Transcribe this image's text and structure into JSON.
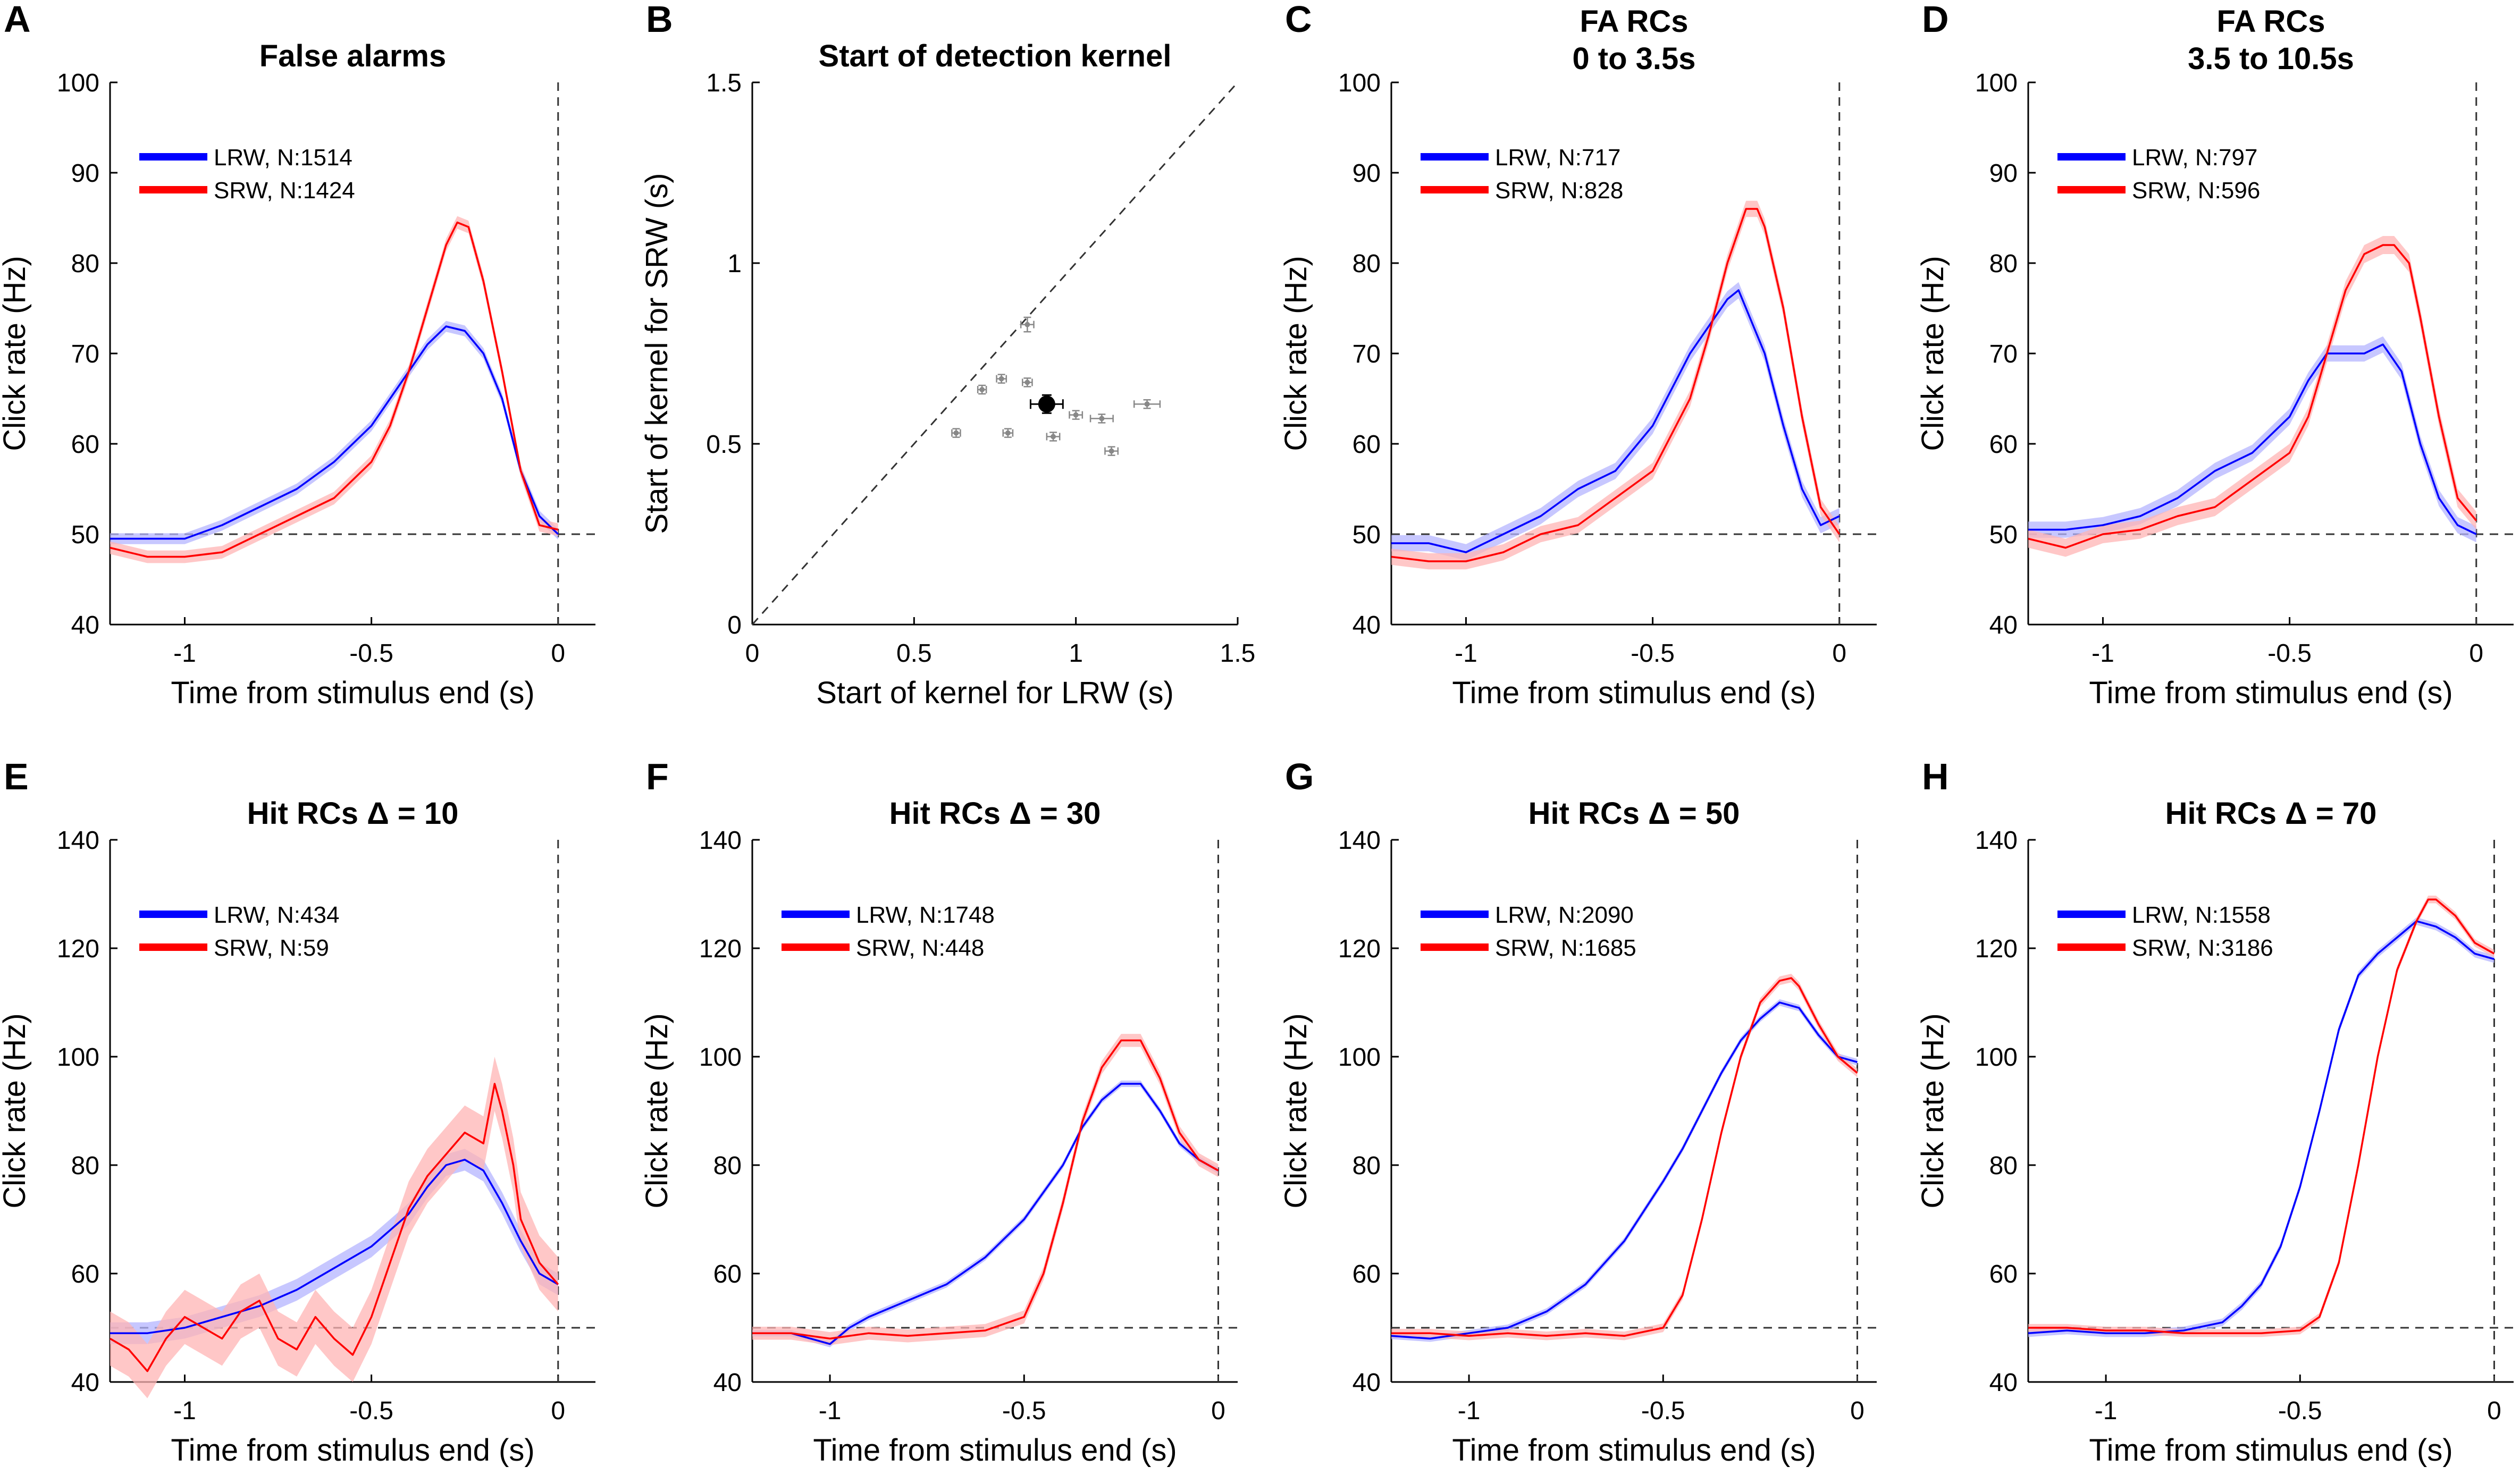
{
  "figure": {
    "colors": {
      "lrw": "#0000ff",
      "srw": "#ff0000",
      "lrw_band": "#b4b4ff",
      "srw_band": "#ffb4b4",
      "scatter_points": "#888888",
      "mean_point": "#000000",
      "axis": "#000000",
      "reference": "#333333"
    }
  },
  "chart_data": [
    {
      "panel": "A",
      "type": "line",
      "title": [
        "False alarms"
      ],
      "xlabel": "Time from stimulus end (s)",
      "ylabel": "Click rate (Hz)",
      "xlim": [
        -1.2,
        0.1
      ],
      "ylim": [
        40,
        100
      ],
      "xticks": [
        -1,
        -0.5,
        0
      ],
      "xtick_labels": [
        "-1",
        "-0.5",
        "0"
      ],
      "yticks": [
        40,
        50,
        60,
        70,
        80,
        90,
        100
      ],
      "ytick_labels": [
        "40",
        "50",
        "60",
        "70",
        "80",
        "90",
        "100"
      ],
      "hline": 50,
      "vline": 0,
      "series": [
        {
          "name": "LRW",
          "legend": "LRW, N:1514",
          "color": "#0000ff",
          "band": 0.6,
          "x": [
            -1.2,
            -1.1,
            -1.0,
            -0.9,
            -0.8,
            -0.7,
            -0.6,
            -0.5,
            -0.45,
            -0.4,
            -0.35,
            -0.3,
            -0.25,
            -0.2,
            -0.15,
            -0.1,
            -0.05,
            0
          ],
          "y": [
            49.5,
            49.5,
            49.5,
            51,
            53,
            55,
            58,
            62,
            65,
            68,
            71,
            73,
            72.5,
            70,
            65,
            57,
            52,
            50
          ]
        },
        {
          "name": "SRW",
          "legend": "SRW, N:1424",
          "color": "#ff0000",
          "band": 0.7,
          "x": [
            -1.2,
            -1.1,
            -1.0,
            -0.9,
            -0.8,
            -0.7,
            -0.6,
            -0.5,
            -0.45,
            -0.4,
            -0.35,
            -0.3,
            -0.27,
            -0.24,
            -0.2,
            -0.15,
            -0.1,
            -0.05,
            0
          ],
          "y": [
            48.5,
            47.5,
            47.5,
            48,
            50,
            52,
            54,
            58,
            62,
            68,
            75,
            82,
            84.5,
            84,
            78,
            68,
            57,
            51,
            50.5
          ]
        }
      ]
    },
    {
      "panel": "B",
      "type": "scatter",
      "title": [
        "Start of detection kernel"
      ],
      "xlabel": "Start of kernel for LRW (s)",
      "ylabel": "Start of kernel for SRW (s)",
      "xlim": [
        0,
        1.5
      ],
      "ylim": [
        0,
        1.5
      ],
      "xticks": [
        0,
        0.5,
        1,
        1.5
      ],
      "xtick_labels": [
        "0",
        "0.5",
        "1",
        "1.5"
      ],
      "yticks": [
        0,
        0.5,
        1,
        1.5
      ],
      "ytick_labels": [
        "0",
        "0.5",
        "1",
        "1.5"
      ],
      "diagonal": true,
      "points": [
        {
          "x": 0.63,
          "y": 0.53,
          "xerr": 0.01,
          "yerr": 0.01
        },
        {
          "x": 0.71,
          "y": 0.65,
          "xerr": 0.01,
          "yerr": 0.01
        },
        {
          "x": 0.77,
          "y": 0.68,
          "xerr": 0.015,
          "yerr": 0.01
        },
        {
          "x": 0.79,
          "y": 0.53,
          "xerr": 0.015,
          "yerr": 0.01
        },
        {
          "x": 0.85,
          "y": 0.83,
          "xerr": 0.02,
          "yerr": 0.02
        },
        {
          "x": 0.85,
          "y": 0.67,
          "xerr": 0.015,
          "yerr": 0.01
        },
        {
          "x": 0.93,
          "y": 0.52,
          "xerr": 0.02,
          "yerr": 0.01
        },
        {
          "x": 1.0,
          "y": 0.58,
          "xerr": 0.02,
          "yerr": 0.01
        },
        {
          "x": 1.08,
          "y": 0.57,
          "xerr": 0.035,
          "yerr": 0.01
        },
        {
          "x": 1.11,
          "y": 0.48,
          "xerr": 0.02,
          "yerr": 0.01
        },
        {
          "x": 1.22,
          "y": 0.61,
          "xerr": 0.04,
          "yerr": 0.01
        }
      ],
      "mean_point": {
        "x": 0.91,
        "y": 0.61,
        "xerr": 0.05,
        "yerr": 0.025
      }
    },
    {
      "panel": "C",
      "type": "line",
      "title": [
        "FA RCs",
        "0 to 3.5s"
      ],
      "xlabel": "Time from stimulus end (s)",
      "ylabel": "Click rate (Hz)",
      "xlim": [
        -1.2,
        0.1
      ],
      "ylim": [
        40,
        100
      ],
      "xticks": [
        -1,
        -0.5,
        0
      ],
      "xtick_labels": [
        "-1",
        "-0.5",
        "0"
      ],
      "yticks": [
        40,
        50,
        60,
        70,
        80,
        90,
        100
      ],
      "ytick_labels": [
        "40",
        "50",
        "60",
        "70",
        "80",
        "90",
        "100"
      ],
      "hline": 50,
      "vline": 0,
      "series": [
        {
          "name": "LRW",
          "legend": "LRW, N:717",
          "color": "#0000ff",
          "band": 0.9,
          "x": [
            -1.2,
            -1.1,
            -1.0,
            -0.9,
            -0.8,
            -0.7,
            -0.6,
            -0.5,
            -0.45,
            -0.4,
            -0.35,
            -0.3,
            -0.27,
            -0.23,
            -0.2,
            -0.15,
            -0.1,
            -0.05,
            0
          ],
          "y": [
            49,
            49,
            48,
            50,
            52,
            55,
            57,
            62,
            66,
            70,
            73,
            76,
            77,
            73,
            70,
            62,
            55,
            51,
            52
          ]
        },
        {
          "name": "SRW",
          "legend": "SRW, N:828",
          "color": "#ff0000",
          "band": 0.9,
          "x": [
            -1.2,
            -1.1,
            -1.0,
            -0.9,
            -0.8,
            -0.7,
            -0.6,
            -0.5,
            -0.45,
            -0.4,
            -0.35,
            -0.3,
            -0.25,
            -0.22,
            -0.2,
            -0.15,
            -0.1,
            -0.05,
            0
          ],
          "y": [
            47.5,
            47,
            47,
            48,
            50,
            51,
            54,
            57,
            61,
            65,
            72,
            80,
            86,
            86,
            84,
            75,
            63,
            53,
            50
          ]
        }
      ]
    },
    {
      "panel": "D",
      "type": "line",
      "title": [
        "FA RCs",
        "3.5 to 10.5s"
      ],
      "xlabel": "Time from stimulus end (s)",
      "ylabel": "Click rate (Hz)",
      "xlim": [
        -1.2,
        0.1
      ],
      "ylim": [
        40,
        100
      ],
      "xticks": [
        -1,
        -0.5,
        0
      ],
      "xtick_labels": [
        "-1",
        "-0.5",
        "0"
      ],
      "yticks": [
        40,
        50,
        60,
        70,
        80,
        90,
        100
      ],
      "ytick_labels": [
        "40",
        "50",
        "60",
        "70",
        "80",
        "90",
        "100"
      ],
      "hline": 50,
      "vline": 0,
      "series": [
        {
          "name": "LRW",
          "legend": "LRW, N:797",
          "color": "#0000ff",
          "band": 0.9,
          "x": [
            -1.2,
            -1.1,
            -1.0,
            -0.9,
            -0.8,
            -0.7,
            -0.6,
            -0.5,
            -0.45,
            -0.4,
            -0.35,
            -0.3,
            -0.25,
            -0.2,
            -0.15,
            -0.1,
            -0.05,
            0
          ],
          "y": [
            50.5,
            50.5,
            51,
            52,
            54,
            57,
            59,
            63,
            67,
            70,
            70,
            70,
            71,
            68,
            60,
            54,
            51,
            50
          ]
        },
        {
          "name": "SRW",
          "legend": "SRW, N:596",
          "color": "#ff0000",
          "band": 1.0,
          "x": [
            -1.2,
            -1.1,
            -1.0,
            -0.9,
            -0.8,
            -0.7,
            -0.6,
            -0.5,
            -0.45,
            -0.4,
            -0.35,
            -0.3,
            -0.25,
            -0.22,
            -0.18,
            -0.15,
            -0.1,
            -0.05,
            0
          ],
          "y": [
            49.5,
            48.5,
            50,
            50.5,
            52,
            53,
            56,
            59,
            63,
            70,
            77,
            81,
            82,
            82,
            80,
            74,
            63,
            54,
            51.5
          ]
        }
      ]
    },
    {
      "panel": "E",
      "type": "line",
      "title": [
        "Hit RCs Δ = 10"
      ],
      "xlabel": "Time from stimulus end (s)",
      "ylabel": "Click rate (Hz)",
      "xlim": [
        -1.2,
        0.1
      ],
      "ylim": [
        40,
        140
      ],
      "xticks": [
        -1,
        -0.5,
        0
      ],
      "xtick_labels": [
        "-1",
        "-0.5",
        "0"
      ],
      "yticks": [
        40,
        60,
        80,
        100,
        120,
        140
      ],
      "ytick_labels": [
        "40",
        "60",
        "80",
        "100",
        "120",
        "140"
      ],
      "hline": 50,
      "vline": 0,
      "series": [
        {
          "name": "LRW",
          "legend": "LRW, N:434",
          "color": "#0000ff",
          "band": 2,
          "x": [
            -1.2,
            -1.1,
            -1.0,
            -0.9,
            -0.8,
            -0.7,
            -0.6,
            -0.5,
            -0.4,
            -0.35,
            -0.3,
            -0.25,
            -0.2,
            -0.15,
            -0.1,
            -0.05,
            0
          ],
          "y": [
            49,
            49,
            50,
            52,
            54,
            57,
            61,
            65,
            71,
            76,
            80,
            81,
            79,
            73,
            66,
            60,
            58
          ]
        },
        {
          "name": "SRW",
          "legend": "SRW, N:59",
          "color": "#ff0000",
          "band": 5,
          "x": [
            -1.2,
            -1.15,
            -1.1,
            -1.05,
            -1.0,
            -0.95,
            -0.9,
            -0.85,
            -0.8,
            -0.75,
            -0.7,
            -0.65,
            -0.6,
            -0.55,
            -0.5,
            -0.45,
            -0.4,
            -0.35,
            -0.3,
            -0.25,
            -0.2,
            -0.17,
            -0.15,
            -0.12,
            -0.1,
            -0.05,
            0
          ],
          "y": [
            48,
            46,
            42,
            48,
            52,
            50,
            48,
            53,
            55,
            48,
            46,
            52,
            48,
            45,
            52,
            62,
            72,
            78,
            82,
            86,
            84,
            95,
            90,
            80,
            70,
            62,
            58
          ]
        }
      ]
    },
    {
      "panel": "F",
      "type": "line",
      "title": [
        "Hit RCs Δ = 30"
      ],
      "xlabel": "Time from stimulus end (s)",
      "ylabel": "Click rate (Hz)",
      "xlim": [
        -1.2,
        0.05
      ],
      "ylim": [
        40,
        140
      ],
      "xticks": [
        -1,
        -0.5,
        0
      ],
      "xtick_labels": [
        "-1",
        "-0.5",
        "0"
      ],
      "yticks": [
        40,
        60,
        80,
        100,
        120,
        140
      ],
      "ytick_labels": [
        "40",
        "60",
        "80",
        "100",
        "120",
        "140"
      ],
      "hline": 50,
      "vline": 0,
      "series": [
        {
          "name": "LRW",
          "legend": "LRW, N:1748",
          "color": "#0000ff",
          "band": 0.6,
          "x": [
            -1.2,
            -1.1,
            -1.0,
            -0.95,
            -0.9,
            -0.8,
            -0.7,
            -0.6,
            -0.5,
            -0.4,
            -0.35,
            -0.3,
            -0.25,
            -0.2,
            -0.15,
            -0.1,
            -0.05,
            0
          ],
          "y": [
            49,
            49,
            47,
            50,
            52,
            55,
            58,
            63,
            70,
            80,
            87,
            92,
            95,
            95,
            90,
            84,
            81,
            79
          ]
        },
        {
          "name": "SRW",
          "legend": "SRW, N:448",
          "color": "#ff0000",
          "band": 1.2,
          "x": [
            -1.2,
            -1.1,
            -1.0,
            -0.9,
            -0.8,
            -0.7,
            -0.6,
            -0.5,
            -0.45,
            -0.4,
            -0.35,
            -0.3,
            -0.25,
            -0.2,
            -0.15,
            -0.1,
            -0.05,
            0
          ],
          "y": [
            49,
            49,
            48,
            49,
            48.5,
            49,
            49.5,
            52,
            60,
            73,
            88,
            98,
            103,
            103,
            96,
            86,
            81,
            79
          ]
        }
      ]
    },
    {
      "panel": "G",
      "type": "line",
      "title": [
        "Hit RCs Δ = 50"
      ],
      "xlabel": "Time from stimulus end (s)",
      "ylabel": "Click rate (Hz)",
      "xlim": [
        -1.2,
        0.05
      ],
      "ylim": [
        40,
        140
      ],
      "xticks": [
        -1,
        -0.5,
        0
      ],
      "xtick_labels": [
        "-1",
        "-0.5",
        "0"
      ],
      "yticks": [
        40,
        60,
        80,
        100,
        120,
        140
      ],
      "ytick_labels": [
        "40",
        "60",
        "80",
        "100",
        "120",
        "140"
      ],
      "hline": 50,
      "vline": 0,
      "series": [
        {
          "name": "LRW",
          "legend": "LRW, N:2090",
          "color": "#0000ff",
          "band": 0.6,
          "x": [
            -1.2,
            -1.1,
            -1.0,
            -0.9,
            -0.8,
            -0.7,
            -0.6,
            -0.5,
            -0.45,
            -0.4,
            -0.35,
            -0.3,
            -0.25,
            -0.2,
            -0.15,
            -0.1,
            -0.05,
            0
          ],
          "y": [
            48.5,
            48,
            49,
            50,
            53,
            58,
            66,
            77,
            83,
            90,
            97,
            103,
            107,
            110,
            109,
            104,
            100,
            99
          ]
        },
        {
          "name": "SRW",
          "legend": "SRW, N:1685",
          "color": "#ff0000",
          "band": 0.8,
          "x": [
            -1.2,
            -1.1,
            -1.0,
            -0.9,
            -0.8,
            -0.7,
            -0.6,
            -0.5,
            -0.45,
            -0.4,
            -0.35,
            -0.3,
            -0.25,
            -0.2,
            -0.17,
            -0.15,
            -0.1,
            -0.05,
            0
          ],
          "y": [
            49,
            49,
            48.5,
            49,
            48.5,
            49,
            48.5,
            50,
            56,
            70,
            86,
            100,
            110,
            114,
            114.5,
            113,
            106,
            100,
            97
          ]
        }
      ]
    },
    {
      "panel": "H",
      "type": "line",
      "title": [
        "Hit RCs Δ = 70"
      ],
      "xlabel": "Time from stimulus end (s)",
      "ylabel": "Click rate (Hz)",
      "xlim": [
        -1.2,
        0.05
      ],
      "ylim": [
        40,
        140
      ],
      "xticks": [
        -1,
        -0.5,
        0
      ],
      "xtick_labels": [
        "-1",
        "-0.5",
        "0"
      ],
      "yticks": [
        40,
        60,
        80,
        100,
        120,
        140
      ],
      "ytick_labels": [
        "40",
        "60",
        "80",
        "100",
        "120",
        "140"
      ],
      "hline": 50,
      "vline": 0,
      "series": [
        {
          "name": "LRW",
          "legend": "LRW, N:1558",
          "color": "#0000ff",
          "band": 0.7,
          "x": [
            -1.2,
            -1.1,
            -1.0,
            -0.9,
            -0.8,
            -0.7,
            -0.65,
            -0.6,
            -0.55,
            -0.5,
            -0.45,
            -0.4,
            -0.35,
            -0.3,
            -0.25,
            -0.2,
            -0.15,
            -0.1,
            -0.05,
            0
          ],
          "y": [
            49,
            49.5,
            49,
            49,
            49.5,
            51,
            54,
            58,
            65,
            76,
            90,
            105,
            115,
            119,
            122,
            125,
            124,
            122,
            119,
            118
          ]
        },
        {
          "name": "SRW",
          "legend": "SRW, N:3186",
          "color": "#ff0000",
          "band": 0.7,
          "x": [
            -1.2,
            -1.1,
            -1.0,
            -0.9,
            -0.8,
            -0.7,
            -0.6,
            -0.5,
            -0.45,
            -0.4,
            -0.35,
            -0.3,
            -0.25,
            -0.2,
            -0.17,
            -0.15,
            -0.1,
            -0.05,
            0
          ],
          "y": [
            50,
            50,
            49.5,
            49.5,
            49,
            49,
            49,
            49.5,
            52,
            62,
            80,
            100,
            116,
            125,
            129,
            129,
            126,
            121,
            119
          ]
        }
      ]
    }
  ]
}
